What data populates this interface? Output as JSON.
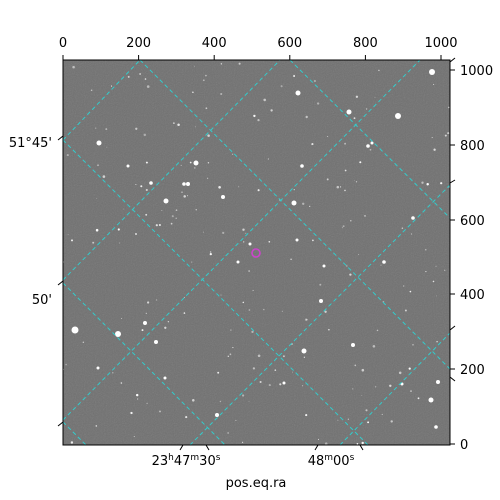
{
  "image": {
    "description_free": true,
    "colormap": "grayscale",
    "background_gray": "#6f6f6f"
  },
  "top_axis": {
    "ticks": [
      "0",
      "200",
      "400",
      "600",
      "800",
      "1000"
    ]
  },
  "right_axis": {
    "ticks": [
      "0",
      "200",
      "400",
      "600",
      "800",
      "1000"
    ]
  },
  "left_axis": {
    "ticks": [
      "51°45'",
      "50'"
    ]
  },
  "bottom_axis": {
    "ticks": [
      {
        "main": "23",
        "u1": "h",
        "m": "47",
        "u2": "m",
        "s": "30",
        "u3": "s"
      },
      {
        "main": "48",
        "u1": "m",
        "m": "00",
        "u2": "s"
      }
    ],
    "label": "pos.eq.ra"
  },
  "grid": {
    "color": "#33cccc",
    "style": "dashed"
  },
  "marker": {
    "color": "#cc44cc",
    "shape": "circle"
  }
}
